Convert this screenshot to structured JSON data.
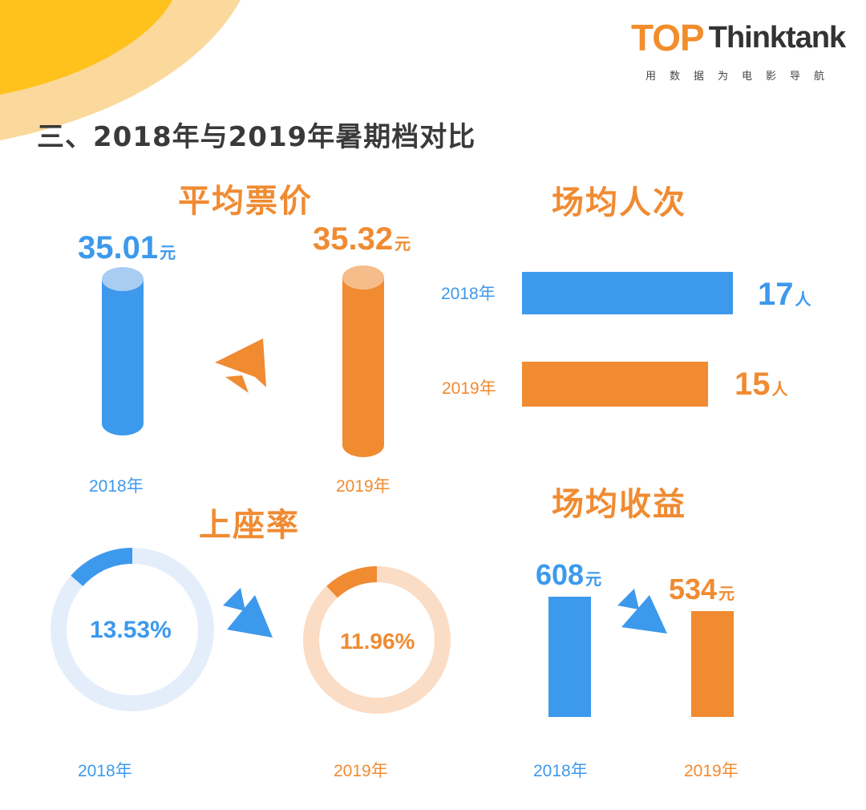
{
  "logo": {
    "brand_top": "TOP",
    "brand_name": "Thinktank",
    "tagline": "用数据为电影导航"
  },
  "page_title": "三、2018年与2019年暑期档对比",
  "colors": {
    "y2018": "#3d99ec",
    "y2019": "#f08b32",
    "title": "#3a3a3a"
  },
  "chart_data": [
    {
      "type": "bar",
      "title": "平均票价",
      "categories": [
        "2018年",
        "2019年"
      ],
      "values": [
        35.01,
        35.32
      ],
      "labels": [
        "35.01",
        "35.32"
      ],
      "unit": "元",
      "trend": "up"
    },
    {
      "type": "bar",
      "orientation": "horizontal",
      "title": "场均人次",
      "categories": [
        "2018年",
        "2019年"
      ],
      "values": [
        17,
        15
      ],
      "labels": [
        "17",
        "15"
      ],
      "unit": "人"
    },
    {
      "type": "pie",
      "title": "上座率",
      "categories": [
        "2018年",
        "2019年"
      ],
      "values": [
        13.53,
        11.96
      ],
      "labels": [
        "13.53%",
        "11.96%"
      ],
      "unit": "%",
      "trend": "down"
    },
    {
      "type": "bar",
      "title": "场均收益",
      "categories": [
        "2018年",
        "2019年"
      ],
      "values": [
        608,
        534
      ],
      "labels": [
        "608",
        "534"
      ],
      "unit": "元",
      "trend": "down"
    }
  ]
}
